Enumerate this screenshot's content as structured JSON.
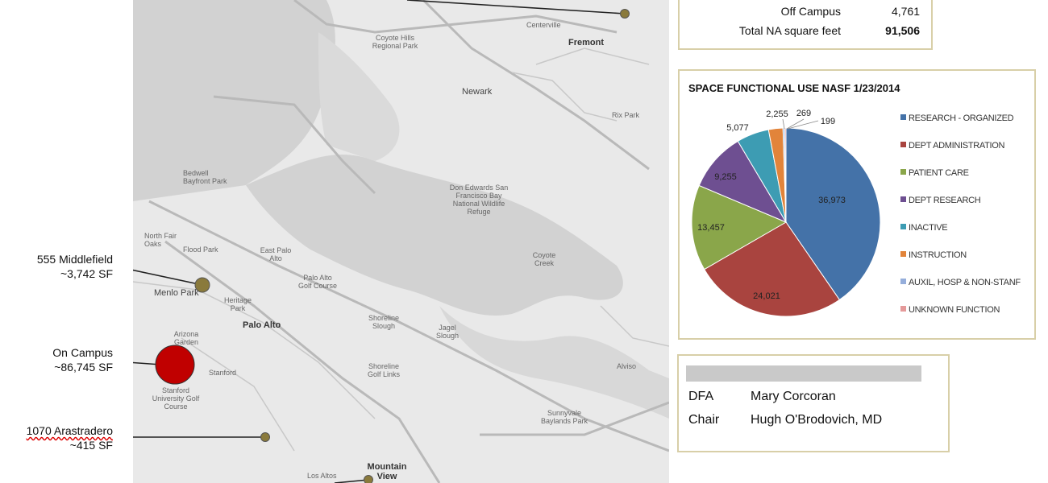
{
  "annotations": [
    {
      "name": "555 Middlefield",
      "size": "~3,742 SF"
    },
    {
      "name": "On Campus",
      "size": "~86,745 SF"
    },
    {
      "name": "1070 Arastradero",
      "size": "~415 SF"
    }
  ],
  "map": {
    "labels": [
      "Coyote Hills Regional Park",
      "Fremont",
      "Newark",
      "Centerville",
      "Rix Park",
      "Bedwell Bayfront Park",
      "Don Edwards San Francisco Bay National Wildlife Refuge",
      "North Fair Oaks",
      "Flood Park",
      "East Palo Alto",
      "Menlo Park",
      "Heritage Park",
      "Palo Alto",
      "Palo Alto Golf Course",
      "Arizona Garden",
      "Stanford",
      "Stanford University Golf Course",
      "Shoreline Golf Links",
      "Shoreline Slough",
      "Jagel Slough",
      "Coyote Creek",
      "Sunnyvale Baylands Park",
      "Mountain View",
      "Los Altos",
      "Alviso"
    ],
    "colors": {
      "land": "#e9e9e9",
      "water": "#d2d2d2",
      "road": "#bdbdbd",
      "site_marker": "#8a7a3c",
      "campus_marker": "#c00000"
    }
  },
  "summary": {
    "rows": [
      {
        "label": "Off Campus",
        "value": "4,761"
      },
      {
        "label": "Total NA square feet",
        "value": "91,506"
      }
    ]
  },
  "chart_data": {
    "type": "pie",
    "title": "SPACE FUNCTIONAL USE NASF 1/23/2014",
    "series": [
      {
        "name": "RESEARCH - ORGANIZED",
        "value": 36973,
        "label": "36,973",
        "color": "#4472a8"
      },
      {
        "name": "DEPT ADMINISTRATION",
        "value": 24021,
        "label": "24,021",
        "color": "#a9443f"
      },
      {
        "name": "PATIENT CARE",
        "value": 13457,
        "label": "13,457",
        "color": "#8aa64a"
      },
      {
        "name": "DEPT RESEARCH",
        "value": 9255,
        "label": "9,255",
        "color": "#6e4f91"
      },
      {
        "name": "INACTIVE",
        "value": 5077,
        "label": "5,077",
        "color": "#3d9cb3"
      },
      {
        "name": "INSTRUCTION",
        "value": 2255,
        "label": "2,255",
        "color": "#e2843a"
      },
      {
        "name": "AUXIL, HOSP & NON-STANF",
        "value": 269,
        "label": "269",
        "color": "#95aedb"
      },
      {
        "name": "UNKNOWN FUNCTION",
        "value": 199,
        "label": "199",
        "color": "#e59a9a"
      }
    ],
    "legend_position": "right"
  },
  "contacts": [
    {
      "role": "DFA",
      "name": "Mary Corcoran"
    },
    {
      "role": "Chair",
      "name": "Hugh O'Brodovich, MD"
    }
  ]
}
